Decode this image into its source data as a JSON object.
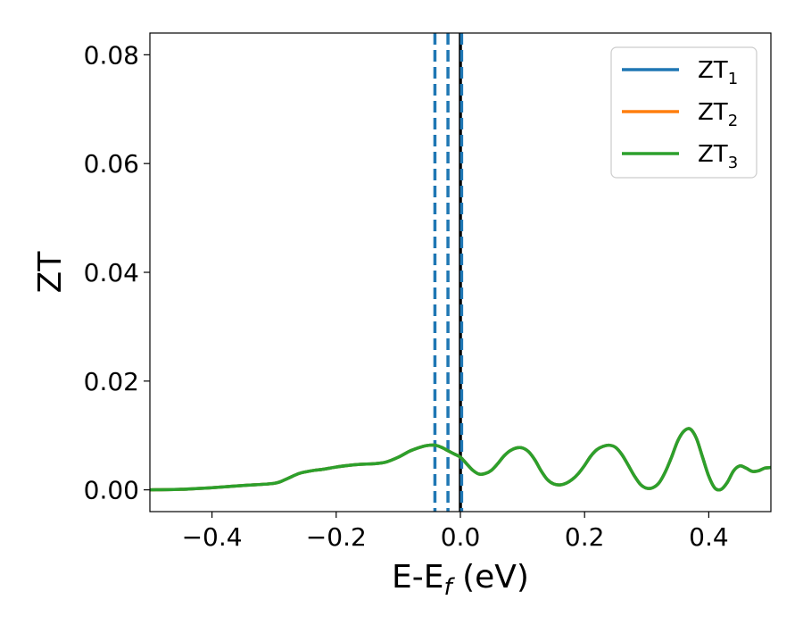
{
  "chart_data": {
    "type": "line",
    "xlabel": "E-E",
    "xlabel_sub": "f",
    "xlabel_unit": " (eV)",
    "ylabel": "ZT",
    "xlim": [
      -0.5,
      0.5
    ],
    "ylim": [
      -0.004,
      0.084
    ],
    "xticks": [
      -0.4,
      -0.2,
      0.0,
      0.2,
      0.4
    ],
    "xtick_labels": [
      "−0.4",
      "−0.2",
      "0.0",
      "0.2",
      "0.4"
    ],
    "yticks": [
      0.0,
      0.02,
      0.04,
      0.06,
      0.08
    ],
    "ytick_labels": [
      "0.00",
      "0.02",
      "0.04",
      "0.06",
      "0.08"
    ],
    "grid": false,
    "legend_position": "top-right",
    "series": [
      {
        "name": "ZT",
        "name_sub": "1",
        "color": "#1f77b4",
        "x": [
          -0.5,
          -0.45,
          -0.4,
          -0.35,
          -0.3,
          -0.28,
          -0.26,
          -0.24,
          -0.22,
          -0.2,
          -0.18,
          -0.16,
          -0.14,
          -0.12,
          -0.1,
          -0.08,
          -0.06,
          -0.05,
          -0.04,
          -0.03,
          -0.02,
          -0.01,
          0.0,
          0.01,
          0.02,
          0.03,
          0.04,
          0.05,
          0.06,
          0.07,
          0.08,
          0.09,
          0.1,
          0.11,
          0.12,
          0.13,
          0.14,
          0.15,
          0.16,
          0.17,
          0.18,
          0.19,
          0.2,
          0.21,
          0.22,
          0.23,
          0.24,
          0.25,
          0.26,
          0.27,
          0.28,
          0.29,
          0.3,
          0.31,
          0.32,
          0.33,
          0.34,
          0.35,
          0.36,
          0.37,
          0.38,
          0.39,
          0.4,
          0.41,
          0.42,
          0.43,
          0.44,
          0.45,
          0.46,
          0.47,
          0.48,
          0.49,
          0.5
        ],
        "y": [
          0.0,
          0.0001,
          0.0004,
          0.0008,
          0.0012,
          0.002,
          0.003,
          0.0035,
          0.0038,
          0.0042,
          0.0045,
          0.0047,
          0.0048,
          0.0051,
          0.006,
          0.0072,
          0.008,
          0.0082,
          0.0082,
          0.0078,
          0.0072,
          0.0066,
          0.006,
          0.0048,
          0.0036,
          0.0029,
          0.003,
          0.0036,
          0.0048,
          0.0062,
          0.0072,
          0.0077,
          0.0077,
          0.007,
          0.0055,
          0.0035,
          0.0019,
          0.0011,
          0.0009,
          0.0012,
          0.0019,
          0.003,
          0.0045,
          0.0062,
          0.0074,
          0.008,
          0.0082,
          0.0078,
          0.0065,
          0.0046,
          0.0026,
          0.001,
          0.0003,
          0.0004,
          0.0013,
          0.0033,
          0.006,
          0.009,
          0.0108,
          0.0112,
          0.0095,
          0.006,
          0.0025,
          0.0003,
          0.0001,
          0.0014,
          0.0035,
          0.0044,
          0.004,
          0.0034,
          0.0035,
          0.004,
          0.0041
        ]
      },
      {
        "name": "ZT",
        "name_sub": "2",
        "color": "#ff7f0e",
        "x": [
          -0.5,
          -0.45,
          -0.4,
          -0.35,
          -0.3,
          -0.28,
          -0.26,
          -0.24,
          -0.22,
          -0.2,
          -0.18,
          -0.16,
          -0.14,
          -0.12,
          -0.1,
          -0.08,
          -0.06,
          -0.05,
          -0.04,
          -0.03,
          -0.02,
          -0.01,
          0.0,
          0.01,
          0.02,
          0.03,
          0.04,
          0.05,
          0.06,
          0.07,
          0.08,
          0.09,
          0.1,
          0.11,
          0.12,
          0.13,
          0.14,
          0.15,
          0.16,
          0.17,
          0.18,
          0.19,
          0.2,
          0.21,
          0.22,
          0.23,
          0.24,
          0.25,
          0.26,
          0.27,
          0.28,
          0.29,
          0.3,
          0.31,
          0.32,
          0.33,
          0.34,
          0.35,
          0.36,
          0.37,
          0.38,
          0.39,
          0.4,
          0.41,
          0.42,
          0.43,
          0.44,
          0.45,
          0.46,
          0.47,
          0.48,
          0.49,
          0.5
        ],
        "y": [
          0.0,
          0.0001,
          0.0004,
          0.0008,
          0.0012,
          0.002,
          0.003,
          0.0035,
          0.0038,
          0.0042,
          0.0045,
          0.0047,
          0.0048,
          0.0051,
          0.006,
          0.0072,
          0.008,
          0.0082,
          0.0082,
          0.0078,
          0.0072,
          0.0066,
          0.006,
          0.0048,
          0.0036,
          0.0029,
          0.003,
          0.0036,
          0.0048,
          0.0062,
          0.0072,
          0.0077,
          0.0077,
          0.007,
          0.0055,
          0.0035,
          0.0019,
          0.0011,
          0.0009,
          0.0012,
          0.0019,
          0.003,
          0.0045,
          0.0062,
          0.0074,
          0.008,
          0.0082,
          0.0078,
          0.0065,
          0.0046,
          0.0026,
          0.001,
          0.0003,
          0.0004,
          0.0013,
          0.0033,
          0.006,
          0.009,
          0.0108,
          0.0112,
          0.0095,
          0.006,
          0.0025,
          0.0003,
          0.0001,
          0.0014,
          0.0035,
          0.0044,
          0.004,
          0.0034,
          0.0035,
          0.004,
          0.0041
        ]
      },
      {
        "name": "ZT",
        "name_sub": "3",
        "color": "#2ca02c",
        "x": [
          -0.5,
          -0.45,
          -0.4,
          -0.35,
          -0.3,
          -0.28,
          -0.26,
          -0.24,
          -0.22,
          -0.2,
          -0.18,
          -0.16,
          -0.14,
          -0.12,
          -0.1,
          -0.08,
          -0.06,
          -0.05,
          -0.04,
          -0.03,
          -0.02,
          -0.01,
          0.0,
          0.01,
          0.02,
          0.03,
          0.04,
          0.05,
          0.06,
          0.07,
          0.08,
          0.09,
          0.1,
          0.11,
          0.12,
          0.13,
          0.14,
          0.15,
          0.16,
          0.17,
          0.18,
          0.19,
          0.2,
          0.21,
          0.22,
          0.23,
          0.24,
          0.25,
          0.26,
          0.27,
          0.28,
          0.29,
          0.3,
          0.31,
          0.32,
          0.33,
          0.34,
          0.35,
          0.36,
          0.37,
          0.38,
          0.39,
          0.4,
          0.41,
          0.42,
          0.43,
          0.44,
          0.45,
          0.46,
          0.47,
          0.48,
          0.49,
          0.5
        ],
        "y": [
          0.0,
          0.0001,
          0.0004,
          0.0008,
          0.0012,
          0.002,
          0.003,
          0.0035,
          0.0038,
          0.0042,
          0.0045,
          0.0047,
          0.0048,
          0.0051,
          0.006,
          0.0072,
          0.008,
          0.0082,
          0.0082,
          0.0078,
          0.0072,
          0.0066,
          0.006,
          0.0048,
          0.0036,
          0.0029,
          0.003,
          0.0036,
          0.0048,
          0.0062,
          0.0072,
          0.0077,
          0.0077,
          0.007,
          0.0055,
          0.0035,
          0.0019,
          0.0011,
          0.0009,
          0.0012,
          0.0019,
          0.003,
          0.0045,
          0.0062,
          0.0074,
          0.008,
          0.0082,
          0.0078,
          0.0065,
          0.0046,
          0.0026,
          0.001,
          0.0003,
          0.0004,
          0.0013,
          0.0033,
          0.006,
          0.009,
          0.0108,
          0.0112,
          0.0095,
          0.006,
          0.0025,
          0.0003,
          0.0001,
          0.0014,
          0.0035,
          0.0044,
          0.004,
          0.0034,
          0.0035,
          0.004,
          0.0041
        ]
      }
    ],
    "vlines": [
      {
        "x": -0.041,
        "color": "#1f77b4",
        "style": "dashed"
      },
      {
        "x": -0.02,
        "color": "#1f77b4",
        "style": "dashed"
      },
      {
        "x": 0.0,
        "color": "#000000",
        "style": "solid"
      },
      {
        "x": 0.002,
        "color": "#1f77b4",
        "style": "dashed"
      }
    ]
  }
}
